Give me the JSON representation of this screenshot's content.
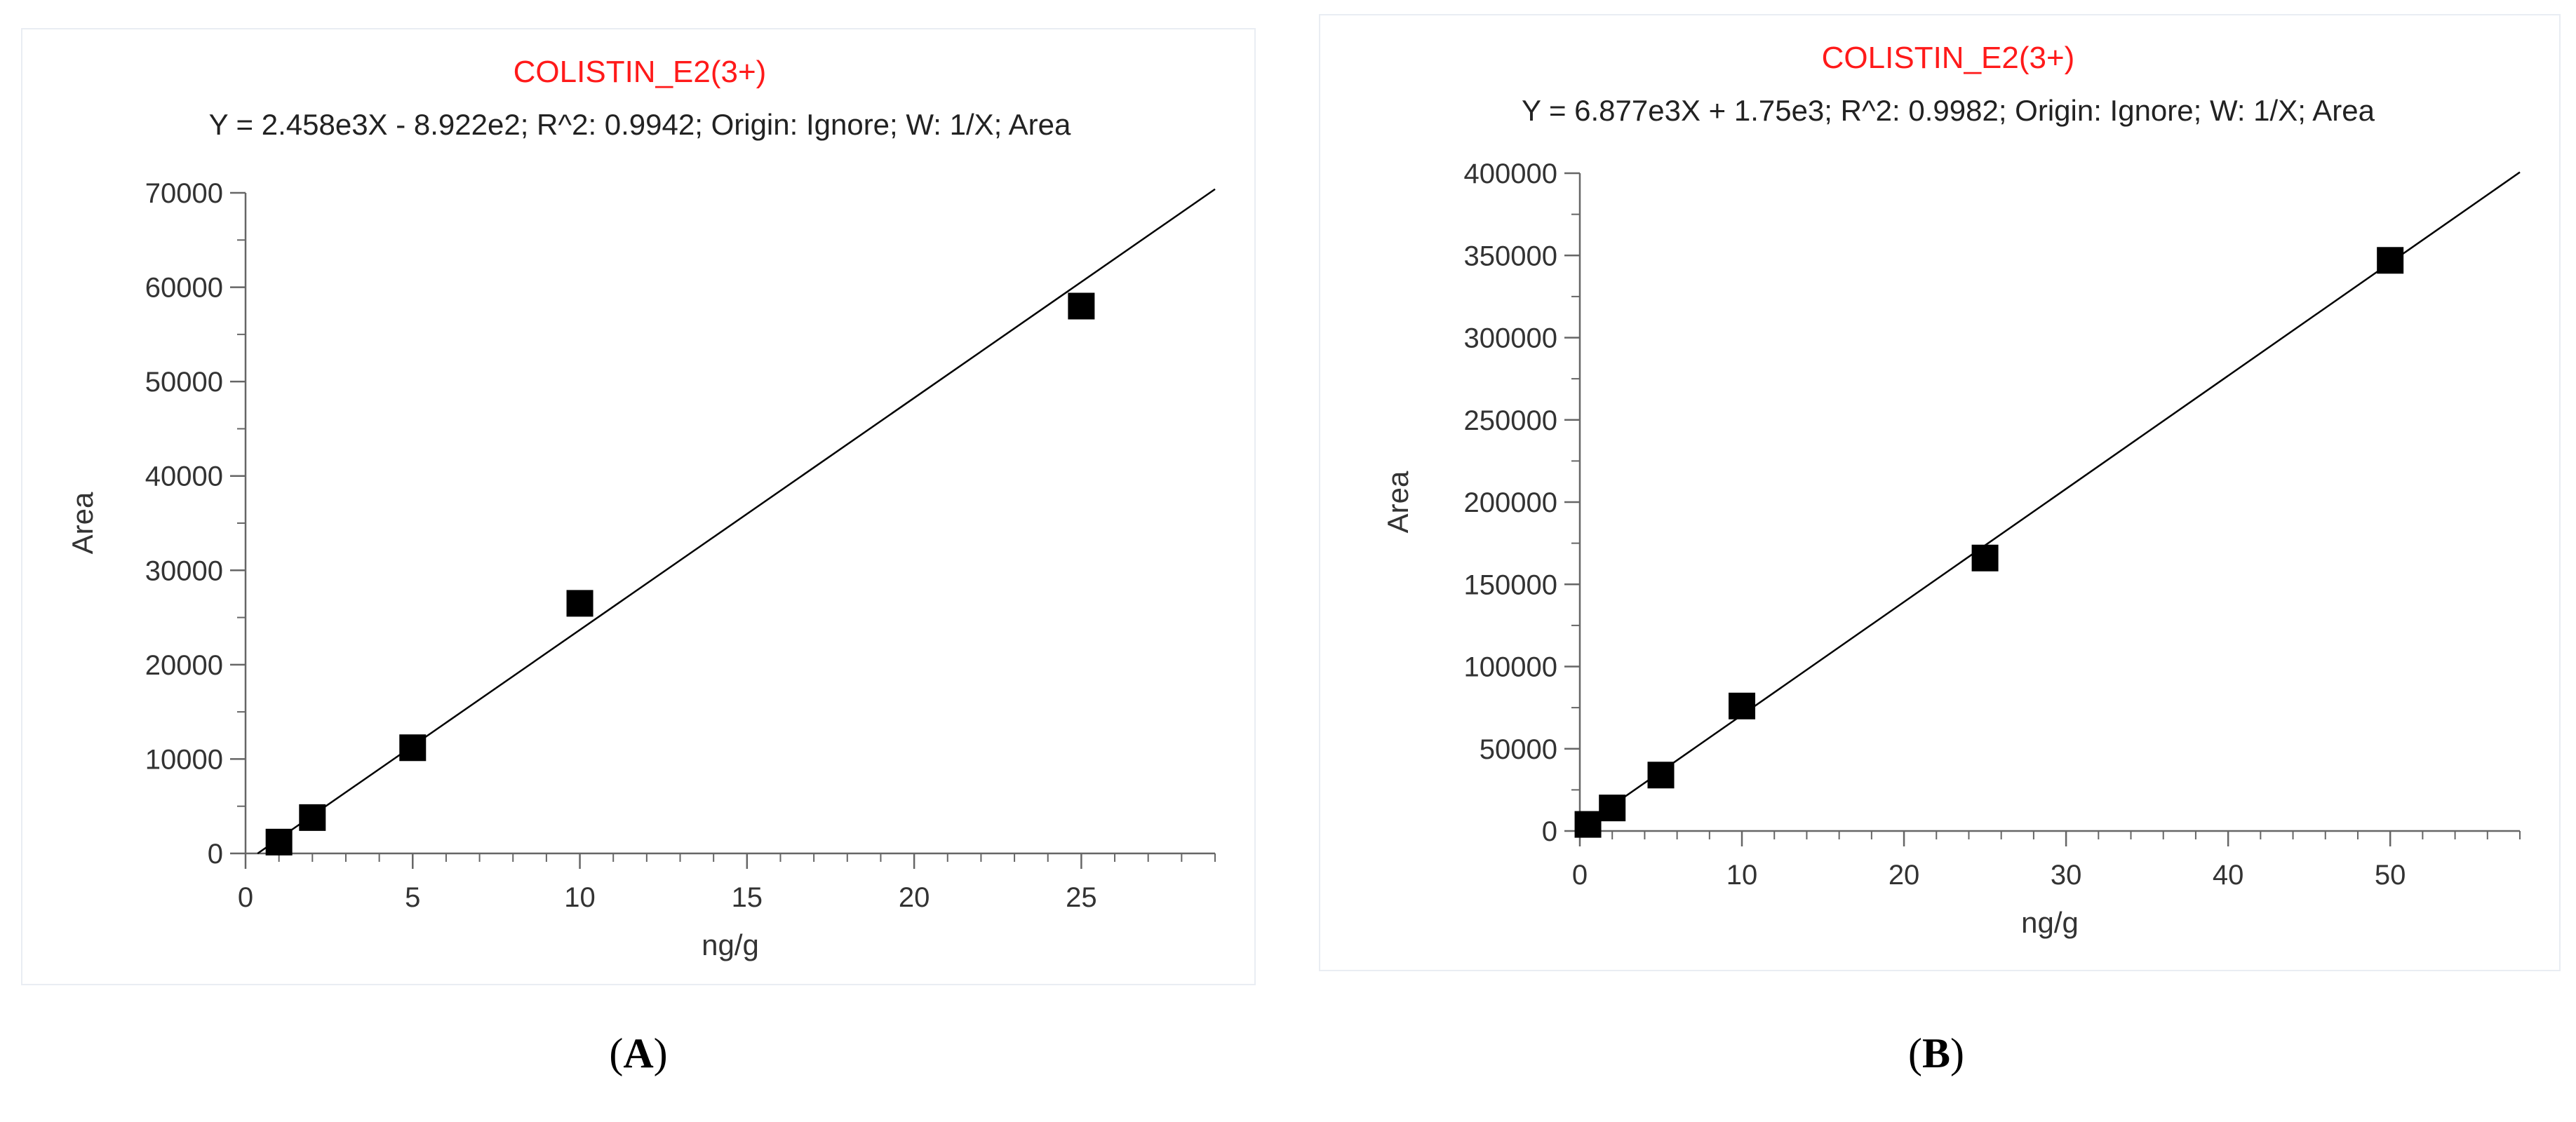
{
  "captions": {
    "a": {
      "open": "(",
      "letter": "A",
      "close": ")"
    },
    "b": {
      "open": "(",
      "letter": "B",
      "close": ")"
    }
  },
  "chart_data": [
    {
      "type": "scatter",
      "title": "COLISTIN_E2(3+)",
      "subtitle": "Y = 2.458e3X - 8.922e2; R^2: 0.9942; Origin: Ignore; W: 1/X; Area",
      "xlabel": "ng/g",
      "ylabel": "Area",
      "xlim": [
        0,
        29
      ],
      "ylim": [
        0,
        70000
      ],
      "x_ticks": [
        0,
        5,
        10,
        15,
        20,
        25
      ],
      "y_ticks": [
        0,
        10000,
        20000,
        30000,
        40000,
        50000,
        60000,
        70000
      ],
      "grid": false,
      "colors": {
        "title": "#ff1a1a",
        "points": "#000000",
        "line": "#000000"
      },
      "series": [
        {
          "marker": "square",
          "x": [
            1,
            2,
            5,
            10,
            25
          ],
          "y": [
            1200,
            3800,
            11200,
            26500,
            58000
          ]
        }
      ],
      "fit_line": {
        "slope": 2458,
        "intercept": -892.2,
        "x_range": [
          0.36,
          29
        ]
      }
    },
    {
      "type": "scatter",
      "title": "COLISTIN_E2(3+)",
      "subtitle": "Y = 6.877e3X + 1.75e3; R^2: 0.9982; Origin: Ignore; W: 1/X; Area",
      "xlabel": "ng/g",
      "ylabel": "Area",
      "xlim": [
        0,
        58
      ],
      "ylim": [
        0,
        400000
      ],
      "x_ticks": [
        0,
        10,
        20,
        30,
        40,
        50
      ],
      "y_ticks": [
        0,
        50000,
        100000,
        150000,
        200000,
        250000,
        300000,
        350000,
        400000
      ],
      "grid": false,
      "colors": {
        "title": "#ff1a1a",
        "points": "#000000",
        "line": "#000000"
      },
      "series": [
        {
          "marker": "square",
          "x": [
            0.5,
            2,
            5,
            10,
            25,
            50
          ],
          "y": [
            4000,
            14000,
            34000,
            76000,
            166000,
            347000
          ]
        }
      ],
      "fit_line": {
        "slope": 6877,
        "intercept": 1750,
        "x_range": [
          0,
          58
        ]
      }
    }
  ]
}
